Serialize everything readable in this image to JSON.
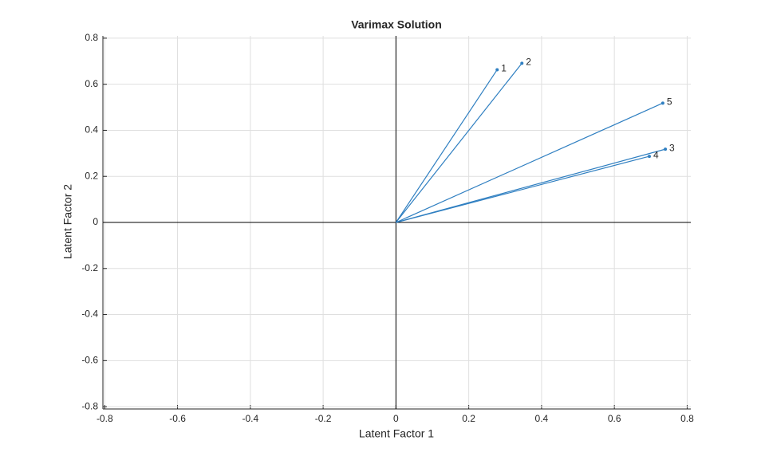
{
  "chart_data": {
    "type": "vector",
    "title": "Varimax Solution",
    "x_label": "Latent Factor 1",
    "y_label": "Latent Factor 2",
    "labels": [
      "1",
      "2",
      "3",
      "4",
      "5"
    ],
    "x": [
      0.278,
      0.346,
      0.74,
      0.696,
      0.733
    ],
    "y": [
      0.663,
      0.691,
      0.318,
      0.287,
      0.518
    ],
    "color": "#2f7fc1",
    "xlim": [
      -0.805,
      0.81
    ],
    "ylim": [
      -0.81,
      0.81
    ],
    "xticks": [
      -0.8,
      -0.6,
      -0.4,
      -0.2,
      0,
      0.2,
      0.4,
      0.6,
      0.8
    ],
    "yticks": [
      -0.8,
      -0.6,
      -0.4,
      -0.2,
      0,
      0.2,
      0.4,
      0.6,
      0.8
    ],
    "grid": true
  }
}
